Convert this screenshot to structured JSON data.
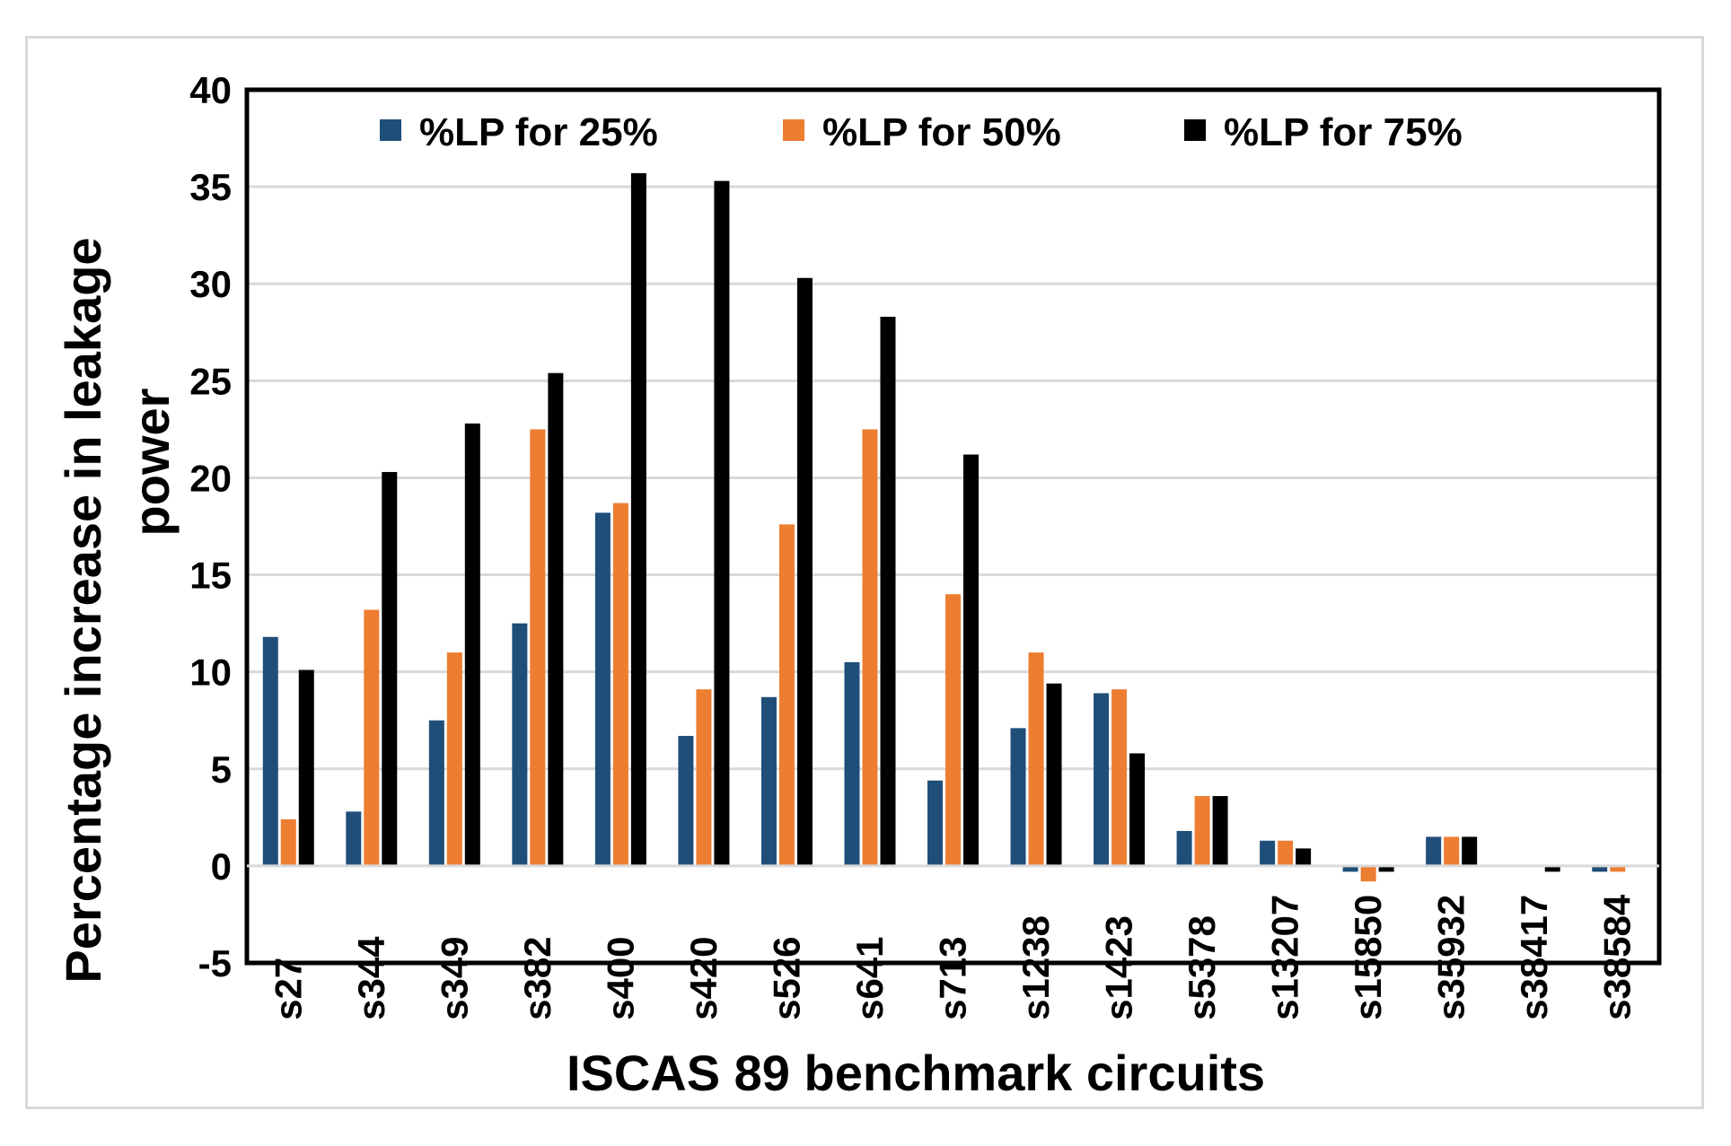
{
  "chart_data": {
    "type": "bar",
    "title": "",
    "xlabel": "ISCAS 89 benchmark circuits",
    "ylabel_lines": [
      "Percentage increase in leakage",
      "power"
    ],
    "ylim": [
      -5,
      40
    ],
    "ytick_step": 5,
    "grid": true,
    "legend_position": "top",
    "categories": [
      "s27",
      "s344",
      "s349",
      "s382",
      "s400",
      "s420",
      "s526",
      "s641",
      "s713",
      "s1238",
      "s1423",
      "s5378",
      "s13207",
      "s15850",
      "s35932",
      "s38417",
      "s38584"
    ],
    "series": [
      {
        "name": "%LP for 25%",
        "color": "#1f4e79",
        "values": [
          11.8,
          2.8,
          7.5,
          12.5,
          18.2,
          6.7,
          8.7,
          10.5,
          4.4,
          7.1,
          8.9,
          1.8,
          1.3,
          -0.3,
          1.5,
          0,
          -0.3
        ]
      },
      {
        "name": "%LP for 50%",
        "color": "#ed7d31",
        "values": [
          2.4,
          13.2,
          11.0,
          22.5,
          18.7,
          9.1,
          17.6,
          22.5,
          14.0,
          11.0,
          9.1,
          3.6,
          1.3,
          -0.8,
          1.5,
          0,
          -0.3
        ]
      },
      {
        "name": "%LP for 75%",
        "color": "#000000",
        "values": [
          10.1,
          20.3,
          22.8,
          25.4,
          35.7,
          35.3,
          30.3,
          28.3,
          21.2,
          9.4,
          5.8,
          3.6,
          0.9,
          -0.3,
          1.5,
          -0.3,
          0
        ]
      }
    ]
  }
}
